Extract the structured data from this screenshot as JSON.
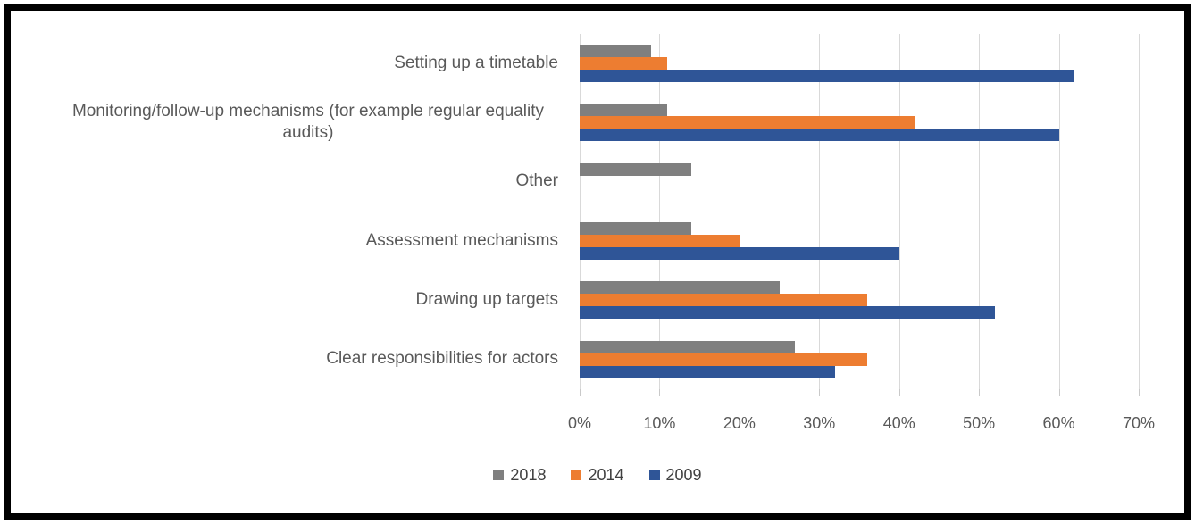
{
  "chart_data": {
    "type": "bar",
    "orientation": "horizontal",
    "title": "",
    "xlabel": "",
    "ylabel": "",
    "xlim": [
      0,
      70
    ],
    "x_ticks": [
      "0%",
      "10%",
      "20%",
      "30%",
      "40%",
      "50%",
      "60%",
      "70%"
    ],
    "grid": true,
    "legend_position": "bottom",
    "categories": [
      "Setting up a timetable",
      "Monitoring/follow-up mechanisms (for example regular equality audits)",
      "Other",
      "Assessment mechanisms",
      "Drawing up targets",
      "Clear responsibilities for actors"
    ],
    "series": [
      {
        "name": "2018",
        "color": "#7F7F7F",
        "values": [
          9,
          11,
          14,
          14,
          25,
          27
        ]
      },
      {
        "name": "2014",
        "color": "#ED7D31",
        "values": [
          11,
          42,
          0,
          20,
          36,
          36
        ]
      },
      {
        "name": "2009",
        "color": "#2F5597",
        "values": [
          62,
          60,
          0,
          40,
          52,
          32
        ]
      }
    ]
  },
  "style": {
    "gridline_color": "#D9D9D9",
    "tick_color": "#C9C9C9",
    "axis_text_color": "#595959",
    "frame_border_color": "#000000",
    "background_color": "#FFFFFF"
  }
}
